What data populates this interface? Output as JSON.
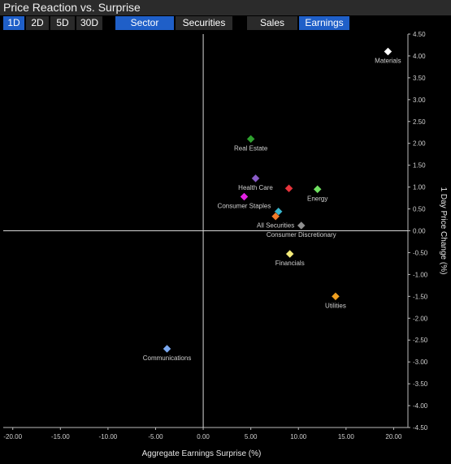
{
  "header": {
    "title": "Price Reaction vs. Surprise"
  },
  "period_tabs": [
    {
      "label": "1D",
      "active": true
    },
    {
      "label": "2D",
      "active": false
    },
    {
      "label": "5D",
      "active": false
    },
    {
      "label": "30D",
      "active": false
    }
  ],
  "group_tabs": [
    {
      "label": "Sector",
      "active": true
    },
    {
      "label": "Securities",
      "active": false
    }
  ],
  "metric_tabs": [
    {
      "label": "Sales",
      "active": false
    },
    {
      "label": "Earnings",
      "active": true
    }
  ],
  "colors": {
    "accent": "#1f5fc8",
    "tab_bg": "#2a2a2a",
    "background": "#000000"
  },
  "chart_data": {
    "type": "scatter",
    "xlabel": "Aggregate Earnings Surprise (%)",
    "ylabel": "1 Day Price Change (%)",
    "xlim": [
      -21,
      21.5
    ],
    "ylim": [
      -4.5,
      4.5
    ],
    "x_ticks": [
      -20,
      -15,
      -10,
      -5,
      0,
      5,
      10,
      15,
      20
    ],
    "y_ticks": [
      4.5,
      4.0,
      3.5,
      3.0,
      2.5,
      2.0,
      1.5,
      1.0,
      0.5,
      0.0,
      -0.5,
      -1.0,
      -1.5,
      -2.0,
      -2.5,
      -3.0,
      -3.5,
      -4.0,
      -4.5
    ],
    "grid": false,
    "points": [
      {
        "label": "Materials",
        "x": 19.4,
        "y": 4.1,
        "color": "#ffffff"
      },
      {
        "label": "Real Estate",
        "x": 5.0,
        "y": 2.1,
        "color": "#2ea02e"
      },
      {
        "label": "Health Care",
        "x": 5.5,
        "y": 1.2,
        "color": "#8a5cc8"
      },
      {
        "label": "",
        "x": 9.0,
        "y": 0.97,
        "color": "#e8343c"
      },
      {
        "label": "Energy",
        "x": 12.0,
        "y": 0.95,
        "color": "#6fe060"
      },
      {
        "label": "Consumer Staples",
        "x": 4.3,
        "y": 0.78,
        "color": "#e020e0"
      },
      {
        "label": "",
        "x": 7.9,
        "y": 0.44,
        "color": "#3ab8d0"
      },
      {
        "label": "All Securities",
        "x": 7.6,
        "y": 0.33,
        "color": "#f07b2a"
      },
      {
        "label": "Consumer Discretionary",
        "x": 10.3,
        "y": 0.12,
        "color": "#909090"
      },
      {
        "label": "Financials",
        "x": 9.1,
        "y": -0.53,
        "color": "#f5ec7a"
      },
      {
        "label": "Utilities",
        "x": 13.9,
        "y": -1.5,
        "color": "#f0a020"
      },
      {
        "label": "Communications",
        "x": -3.8,
        "y": -2.7,
        "color": "#7aa8f0"
      }
    ]
  }
}
